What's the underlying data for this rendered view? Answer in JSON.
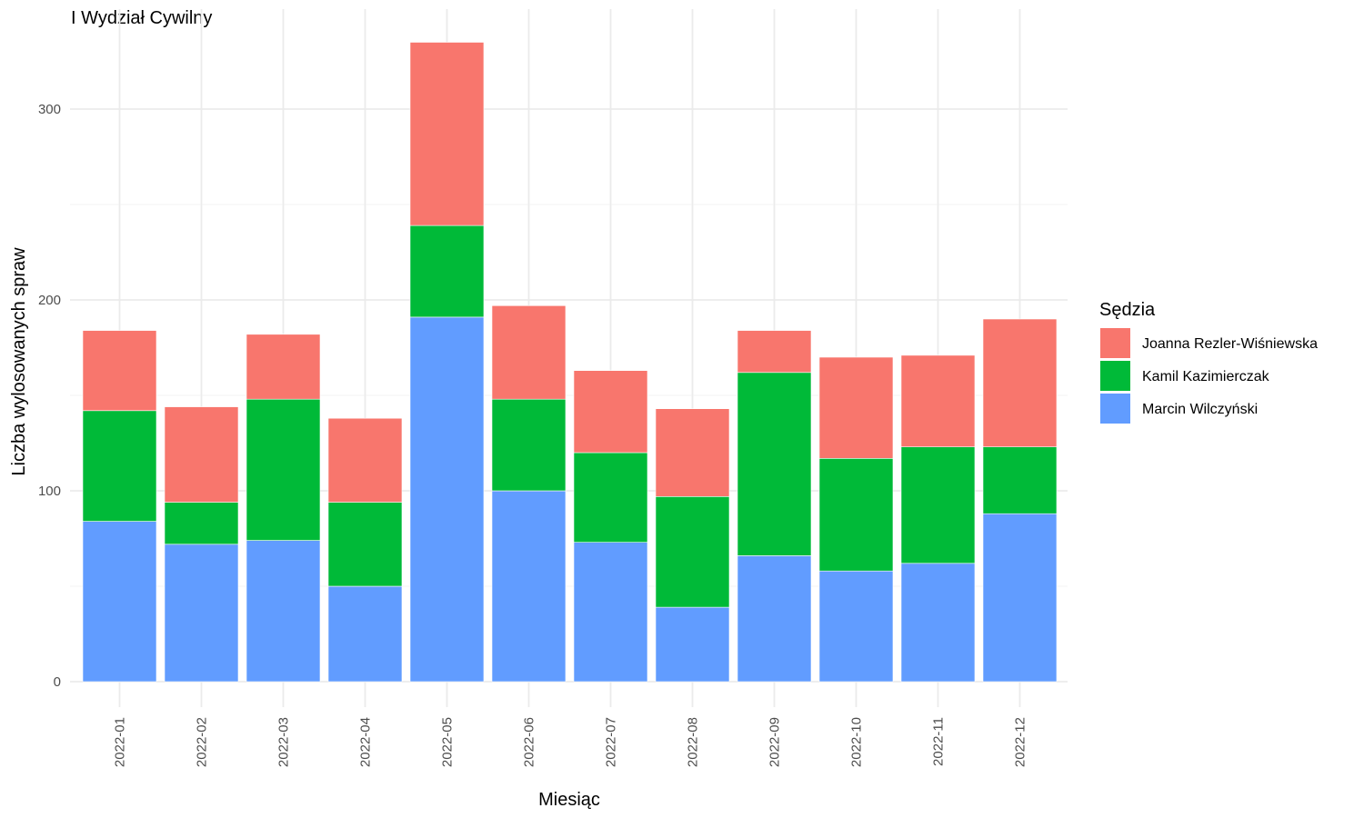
{
  "chart_data": {
    "type": "bar",
    "stacked": true,
    "title": "I Wydział Cywilny",
    "xlabel": "Miesiąc",
    "ylabel": "Liczba wylosowanych spraw",
    "categories": [
      "2022-01",
      "2022-02",
      "2022-03",
      "2022-04",
      "2022-05",
      "2022-06",
      "2022-07",
      "2022-08",
      "2022-09",
      "2022-10",
      "2022-11",
      "2022-12"
    ],
    "series": [
      {
        "name": "Marcin Wilczyński",
        "color": "#619CFF",
        "values": [
          84,
          72,
          74,
          50,
          191,
          100,
          73,
          39,
          66,
          58,
          62,
          88
        ]
      },
      {
        "name": "Kamil Kazimierczak",
        "color": "#00BA38",
        "values": [
          58,
          22,
          74,
          44,
          48,
          48,
          47,
          58,
          96,
          59,
          61,
          35
        ]
      },
      {
        "name": "Joanna Rezler-Wiśniewska",
        "color": "#F8766D",
        "values": [
          42,
          50,
          34,
          44,
          96,
          49,
          43,
          46,
          22,
          53,
          48,
          67
        ]
      }
    ],
    "ylim": [
      0,
      335
    ],
    "yticks": [
      0,
      100,
      200,
      300
    ],
    "grid": true,
    "legend": {
      "title": "Sędzia",
      "position": "right",
      "items": [
        "Joanna Rezler-Wiśniewska",
        "Kamil Kazimierczak",
        "Marcin Wilczyński"
      ]
    }
  }
}
